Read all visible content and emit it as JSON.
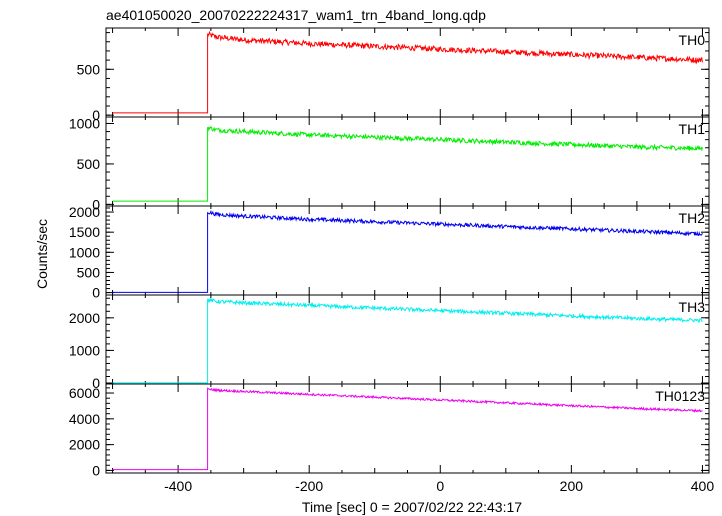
{
  "chart_data": {
    "type": "line",
    "title": "ae401050020_20070222224317_wam1_trn_4band_long.qdp",
    "xlabel": "Time [sec] 0 = 2007/02/22 22:43:17",
    "ylabel": "Counts/sec",
    "xlim": [
      -510,
      410
    ],
    "x_ticks": [
      -400,
      -200,
      0,
      200,
      400
    ],
    "grid": false,
    "legend": "none",
    "step_time": -355,
    "panels": [
      {
        "name": "TH0",
        "color": "#ff0000",
        "ylim": [
          -20,
          950
        ],
        "y_ticks": [
          0,
          500
        ],
        "x": [
          -500,
          -356,
          -355,
          -340,
          -300,
          -200,
          -100,
          0,
          100,
          200,
          300,
          400
        ],
        "values": [
          25,
          25,
          880,
          850,
          820,
          780,
          750,
          720,
          690,
          660,
          630,
          600
        ],
        "noise": 30
      },
      {
        "name": "TH1",
        "color": "#00ee00",
        "ylim": [
          -20,
          1080
        ],
        "y_ticks": [
          0,
          500,
          1000
        ],
        "x": [
          -500,
          -356,
          -355,
          -340,
          -300,
          -200,
          -100,
          0,
          100,
          200,
          300,
          400
        ],
        "values": [
          40,
          40,
          950,
          920,
          900,
          860,
          830,
          800,
          770,
          740,
          710,
          690
        ],
        "noise": 28
      },
      {
        "name": "TH2",
        "color": "#0000ee",
        "ylim": [
          -60,
          2150
        ],
        "y_ticks": [
          0,
          500,
          1000,
          1500,
          2000
        ],
        "x": [
          -500,
          -356,
          -355,
          -340,
          -300,
          -200,
          -100,
          0,
          100,
          200,
          300,
          400
        ],
        "values": [
          5,
          5,
          2000,
          1940,
          1900,
          1820,
          1760,
          1700,
          1640,
          1580,
          1520,
          1460
        ],
        "noise": 45
      },
      {
        "name": "TH3",
        "color": "#00eeee",
        "ylim": [
          -30,
          2700
        ],
        "y_ticks": [
          0,
          1000,
          2000
        ],
        "x": [
          -500,
          -356,
          -355,
          -340,
          -300,
          -200,
          -100,
          0,
          100,
          200,
          300,
          400
        ],
        "values": [
          5,
          5,
          2550,
          2500,
          2460,
          2380,
          2300,
          2220,
          2140,
          2060,
          1980,
          1920
        ],
        "noise": 55
      },
      {
        "name": "TH0123",
        "color": "#ee00ee",
        "ylim": [
          -200,
          6700
        ],
        "y_ticks": [
          0,
          2000,
          4000,
          6000
        ],
        "x": [
          -500,
          -356,
          -355,
          -340,
          -300,
          -200,
          -100,
          0,
          100,
          200,
          300,
          400
        ],
        "values": [
          60,
          60,
          6300,
          6220,
          6120,
          5900,
          5680,
          5460,
          5240,
          5020,
          4800,
          4620
        ],
        "noise": 80
      }
    ]
  }
}
